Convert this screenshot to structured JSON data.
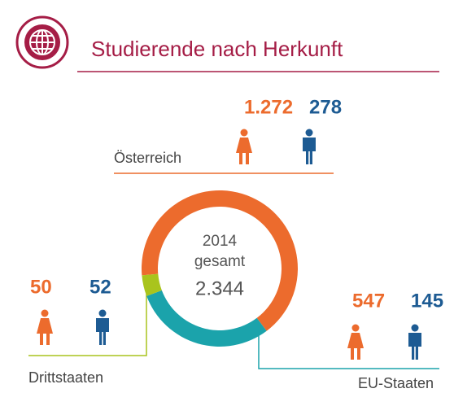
{
  "chart_data": {
    "type": "donut",
    "title": "Studierende nach Herkunft",
    "center_year": "2014",
    "center_text": "gesamt",
    "total": 2344,
    "total_label": "2.344",
    "categories": [
      "Österreich",
      "EU-Staaten",
      "Drittstaaten"
    ],
    "colors": [
      "#ec6b2d",
      "#1ba3ab",
      "#a9c41d"
    ],
    "series": [
      {
        "name": "weiblich",
        "color": "#ec6b2d",
        "values": [
          1272,
          547,
          50
        ],
        "value_labels": [
          "1.272",
          "547",
          "50"
        ]
      },
      {
        "name": "männlich",
        "color": "#1d5b93",
        "values": [
          278,
          145,
          52
        ],
        "value_labels": [
          "278",
          "145",
          "52"
        ]
      }
    ]
  }
}
